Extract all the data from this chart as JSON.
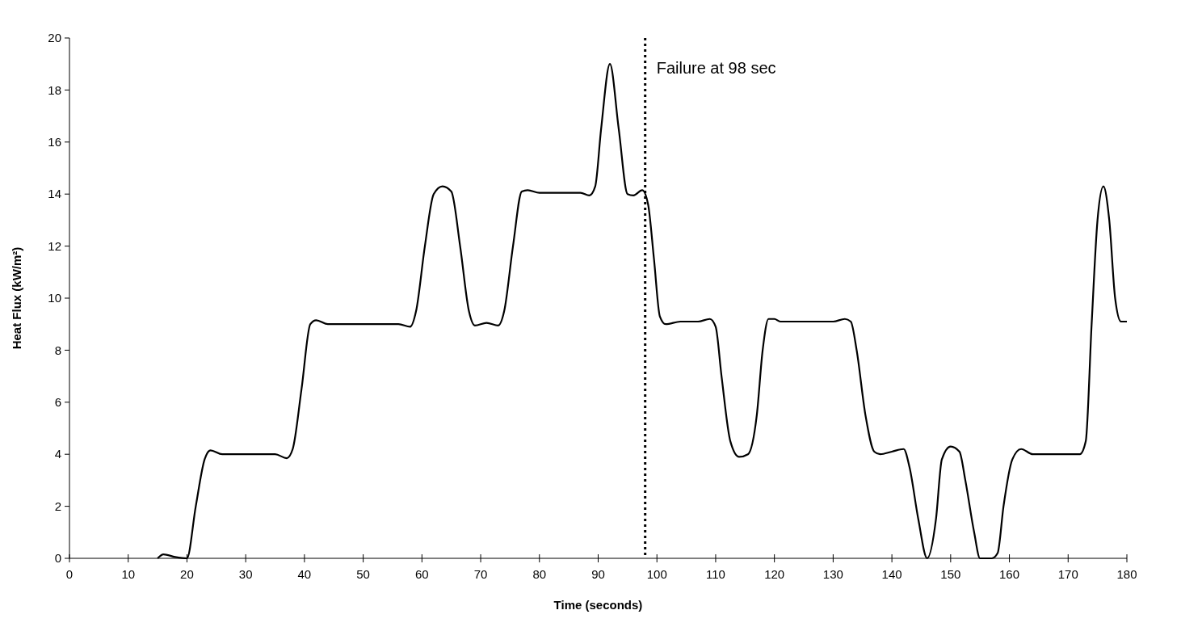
{
  "chart_data": {
    "type": "line",
    "xlabel": "Time (seconds)",
    "ylabel": "Heat Flux (kW/m²)",
    "x": [
      15,
      16,
      18,
      20,
      21.5,
      23,
      24,
      26,
      35,
      37,
      38,
      39.5,
      41,
      42,
      44,
      56,
      58,
      59,
      60.5,
      62,
      63.5,
      65,
      66.5,
      68,
      69,
      71,
      73,
      74,
      75.5,
      77,
      78,
      80,
      87,
      88.5,
      89.5,
      90.5,
      92,
      93.5,
      95,
      96,
      97.5,
      98.5,
      99.5,
      100.5,
      101.5,
      104,
      107,
      109,
      110,
      111,
      112.5,
      114,
      115.5,
      117,
      118,
      119,
      120,
      121,
      130,
      132,
      133,
      134,
      135.5,
      137,
      138,
      140,
      142,
      143,
      144.5,
      146,
      147.5,
      148.5,
      150,
      151.5,
      152.5,
      154,
      155,
      157,
      158,
      159,
      160.5,
      162,
      164,
      170,
      172,
      173,
      174,
      175,
      176,
      177,
      178,
      179,
      180
    ],
    "series": [
      {
        "color": "#000000",
        "values": [
          0,
          0.15,
          0.05,
          0,
          2,
          3.8,
          4.15,
          4,
          4,
          3.85,
          4.2,
          6.5,
          9,
          9.15,
          9,
          9,
          8.9,
          9.5,
          12,
          14,
          14.3,
          14.1,
          12,
          9.5,
          8.95,
          9.05,
          8.95,
          9.5,
          12,
          14.1,
          14.15,
          14.05,
          14.05,
          13.95,
          14.3,
          16.5,
          19,
          16.5,
          14,
          13.95,
          14.15,
          13.6,
          11.5,
          9.3,
          9,
          9.1,
          9.1,
          9.2,
          8.9,
          7,
          4.5,
          3.9,
          4,
          5.5,
          8,
          9.2,
          9.2,
          9.1,
          9.1,
          9.2,
          9.1,
          8,
          5.5,
          4.1,
          4,
          4.1,
          4.2,
          3.5,
          1.5,
          0,
          1.5,
          3.8,
          4.3,
          4.1,
          3,
          1,
          0,
          0,
          0.2,
          2,
          3.8,
          4.2,
          4,
          4,
          4,
          4.5,
          9,
          13,
          14.3,
          13,
          10,
          9.1,
          9.1
        ]
      }
    ],
    "xlim": [
      0,
      180
    ],
    "xticks": [
      0,
      10,
      20,
      30,
      40,
      50,
      60,
      70,
      80,
      90,
      100,
      110,
      120,
      130,
      140,
      150,
      160,
      170,
      180
    ],
    "ylim": [
      0,
      20
    ],
    "yticks": [
      0,
      2,
      4,
      6,
      8,
      10,
      12,
      14,
      16,
      18,
      20
    ],
    "ref_lines": [
      {
        "axis": "x",
        "value": 98,
        "label": "Failure at 98 sec",
        "color": "#000000",
        "line_style": "dotted"
      }
    ],
    "grid": false,
    "marker": "none",
    "line_style": "solid"
  }
}
